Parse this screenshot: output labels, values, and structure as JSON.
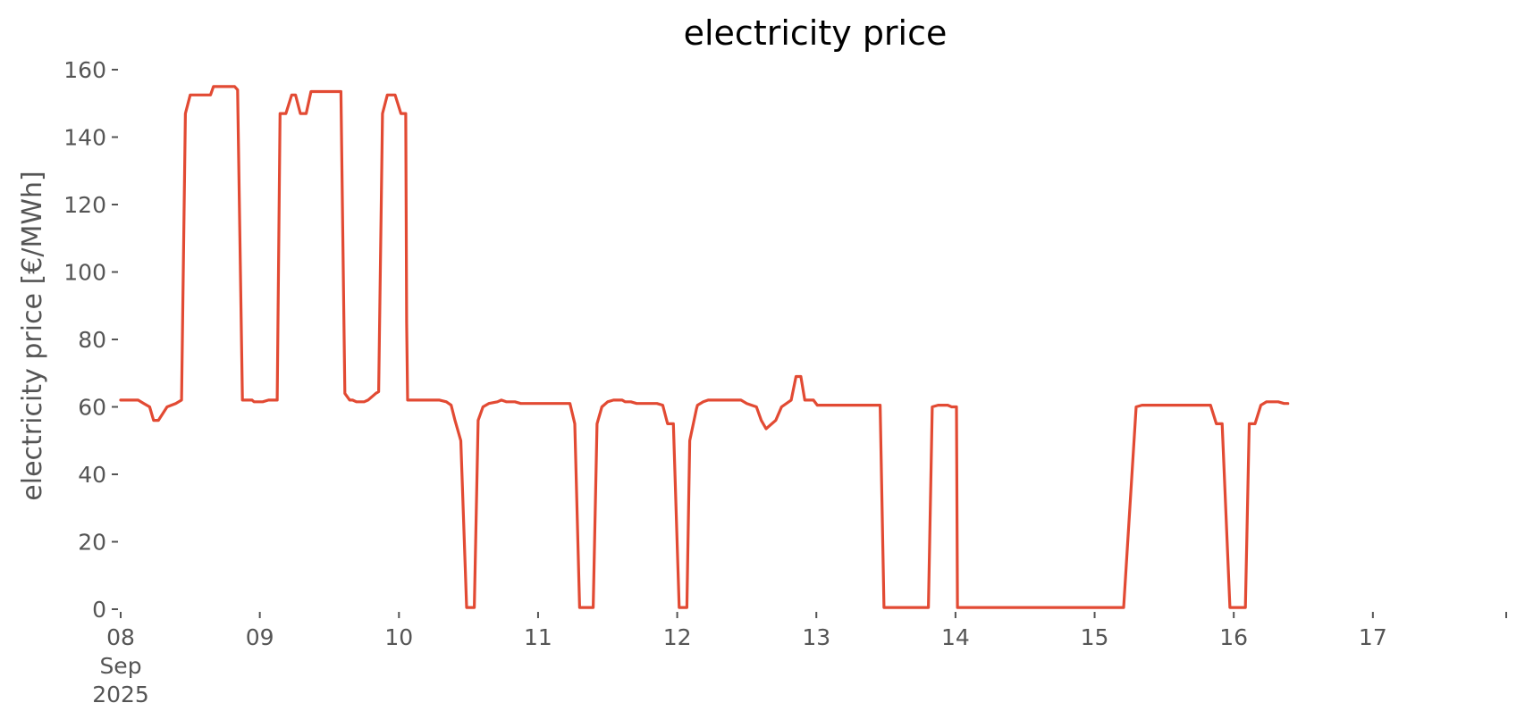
{
  "chart_data": {
    "type": "line",
    "title": "electricity price",
    "xlabel": "",
    "ylabel": "electricity price [€/MWh]",
    "xlim": [
      "2025-09-08T00:00",
      "2025-09-17T23:00"
    ],
    "ylim": [
      0,
      160
    ],
    "grid": false,
    "line_color": "#E24A33",
    "x_ticks": [
      {
        "x": "2025-09-08T00:00",
        "lines": [
          "08",
          "Sep",
          "2025"
        ]
      },
      {
        "x": "2025-09-09T00:00",
        "lines": [
          "09"
        ]
      },
      {
        "x": "2025-09-10T00:00",
        "lines": [
          "10"
        ]
      },
      {
        "x": "2025-09-11T00:00",
        "lines": [
          "11"
        ]
      },
      {
        "x": "2025-09-12T00:00",
        "lines": [
          "12"
        ]
      },
      {
        "x": "2025-09-13T00:00",
        "lines": [
          "13"
        ]
      },
      {
        "x": "2025-09-14T00:00",
        "lines": [
          "14"
        ]
      },
      {
        "x": "2025-09-15T00:00",
        "lines": [
          "15"
        ]
      },
      {
        "x": "2025-09-16T00:00",
        "lines": [
          "16"
        ]
      },
      {
        "x": "2025-09-17T00:00",
        "lines": [
          "17"
        ]
      },
      {
        "x": "2025-09-17T23:00",
        "lines": [
          ""
        ]
      }
    ],
    "y_ticks": [
      0,
      20,
      40,
      60,
      80,
      100,
      120,
      140,
      160
    ],
    "series": [
      {
        "points": [
          [
            "2025-09-08T00:00",
            62.0
          ],
          [
            "2025-09-08T03:00",
            62.0
          ],
          [
            "2025-09-08T04:00",
            61.0
          ],
          [
            "2025-09-08T05:00",
            60.0
          ],
          [
            "2025-09-08T05:40",
            56.0
          ],
          [
            "2025-09-08T06:30",
            56.0
          ],
          [
            "2025-09-08T08:00",
            60.0
          ],
          [
            "2025-09-08T09:30",
            61.0
          ],
          [
            "2025-09-08T10:30",
            62.0
          ],
          [
            "2025-09-08T11:10",
            147.0
          ],
          [
            "2025-09-08T12:00",
            152.5
          ],
          [
            "2025-09-08T15:30",
            152.5
          ],
          [
            "2025-09-08T16:00",
            155.0
          ],
          [
            "2025-09-08T19:40",
            155.0
          ],
          [
            "2025-09-08T20:10",
            154.0
          ],
          [
            "2025-09-08T21:00",
            62.0
          ],
          [
            "2025-09-08T22:40",
            62.0
          ],
          [
            "2025-09-08T23:00",
            61.5
          ],
          [
            "2025-09-09T00:30",
            61.5
          ],
          [
            "2025-09-09T01:30",
            62.0
          ],
          [
            "2025-09-09T03:00",
            62.0
          ],
          [
            "2025-09-09T03:30",
            147.0
          ],
          [
            "2025-09-09T04:30",
            147.0
          ],
          [
            "2025-09-09T05:30",
            152.5
          ],
          [
            "2025-09-09T06:10",
            152.5
          ],
          [
            "2025-09-09T07:00",
            147.0
          ],
          [
            "2025-09-09T08:00",
            147.0
          ],
          [
            "2025-09-09T08:50",
            153.5
          ],
          [
            "2025-09-09T14:00",
            153.5
          ],
          [
            "2025-09-09T14:40",
            64.0
          ],
          [
            "2025-09-09T15:30",
            62.0
          ],
          [
            "2025-09-09T16:00",
            62.0
          ],
          [
            "2025-09-09T16:40",
            61.5
          ],
          [
            "2025-09-09T18:00",
            61.5
          ],
          [
            "2025-09-09T18:40",
            62.0
          ],
          [
            "2025-09-09T20:00",
            64.0
          ],
          [
            "2025-09-09T20:30",
            64.5
          ],
          [
            "2025-09-09T21:10",
            147.0
          ],
          [
            "2025-09-09T22:00",
            152.5
          ],
          [
            "2025-09-09T23:20",
            152.5
          ],
          [
            "2025-09-10T00:20",
            147.0
          ],
          [
            "2025-09-10T01:10",
            147.0
          ],
          [
            "2025-09-10T01:20",
            85.0
          ],
          [
            "2025-09-10T01:30",
            62.0
          ],
          [
            "2025-09-10T07:00",
            62.0
          ],
          [
            "2025-09-10T08:10",
            61.5
          ],
          [
            "2025-09-10T09:00",
            60.5
          ],
          [
            "2025-09-10T09:40",
            56.0
          ],
          [
            "2025-09-10T10:40",
            50.0
          ],
          [
            "2025-09-10T11:40",
            0.5
          ],
          [
            "2025-09-10T13:00",
            0.5
          ],
          [
            "2025-09-10T13:40",
            56.0
          ],
          [
            "2025-09-10T14:30",
            60.0
          ],
          [
            "2025-09-10T15:30",
            61.0
          ],
          [
            "2025-09-10T17:00",
            61.5
          ],
          [
            "2025-09-10T17:40",
            62.0
          ],
          [
            "2025-09-10T18:30",
            61.5
          ],
          [
            "2025-09-10T20:00",
            61.5
          ],
          [
            "2025-09-10T21:00",
            61.0
          ],
          [
            "2025-09-11T05:30",
            61.0
          ],
          [
            "2025-09-11T06:20",
            55.0
          ],
          [
            "2025-09-11T07:10",
            0.5
          ],
          [
            "2025-09-11T09:30",
            0.5
          ],
          [
            "2025-09-11T10:10",
            55.0
          ],
          [
            "2025-09-11T11:00",
            60.0
          ],
          [
            "2025-09-11T12:00",
            61.5
          ],
          [
            "2025-09-11T13:00",
            62.0
          ],
          [
            "2025-09-11T14:30",
            62.0
          ],
          [
            "2025-09-11T15:00",
            61.5
          ],
          [
            "2025-09-11T16:00",
            61.5
          ],
          [
            "2025-09-11T17:00",
            61.0
          ],
          [
            "2025-09-11T20:30",
            61.0
          ],
          [
            "2025-09-11T21:30",
            60.5
          ],
          [
            "2025-09-11T22:20",
            55.0
          ],
          [
            "2025-09-11T23:20",
            55.0
          ],
          [
            "2025-09-12T00:20",
            0.5
          ],
          [
            "2025-09-12T01:40",
            0.5
          ],
          [
            "2025-09-12T02:10",
            50.0
          ],
          [
            "2025-09-12T03:20",
            59.5
          ],
          [
            "2025-09-12T03:30",
            60.5
          ],
          [
            "2025-09-12T04:30",
            61.5
          ],
          [
            "2025-09-12T05:20",
            62.0
          ],
          [
            "2025-09-12T11:00",
            62.0
          ],
          [
            "2025-09-12T12:00",
            61.0
          ],
          [
            "2025-09-12T13:40",
            60.0
          ],
          [
            "2025-09-12T14:30",
            56.0
          ],
          [
            "2025-09-12T15:20",
            53.5
          ],
          [
            "2025-09-12T17:00",
            56.0
          ],
          [
            "2025-09-12T18:00",
            60.0
          ],
          [
            "2025-09-12T19:40",
            62.0
          ],
          [
            "2025-09-12T20:30",
            69.0
          ],
          [
            "2025-09-12T21:20",
            69.0
          ],
          [
            "2025-09-12T22:00",
            62.0
          ],
          [
            "2025-09-12T23:30",
            62.0
          ],
          [
            "2025-09-13T00:10",
            60.5
          ],
          [
            "2025-09-13T11:00",
            60.5
          ],
          [
            "2025-09-13T11:40",
            0.5
          ],
          [
            "2025-09-13T19:20",
            0.5
          ],
          [
            "2025-09-13T20:00",
            60.0
          ],
          [
            "2025-09-13T21:00",
            60.5
          ],
          [
            "2025-09-13T22:40",
            60.5
          ],
          [
            "2025-09-13T23:20",
            60.0
          ],
          [
            "2025-09-14T00:10",
            60.0
          ],
          [
            "2025-09-14T00:20",
            0.5
          ],
          [
            "2025-09-15T03:00",
            0.5
          ],
          [
            "2025-09-15T05:00",
            0.5
          ],
          [
            "2025-09-15T07:10",
            60.0
          ],
          [
            "2025-09-15T08:10",
            60.5
          ],
          [
            "2025-09-15T20:00",
            60.5
          ],
          [
            "2025-09-15T21:00",
            55.0
          ],
          [
            "2025-09-15T22:00",
            55.0
          ],
          [
            "2025-09-15T23:20",
            0.5
          ],
          [
            "2025-09-16T02:00",
            0.5
          ],
          [
            "2025-09-16T02:40",
            55.0
          ],
          [
            "2025-09-16T03:40",
            55.0
          ],
          [
            "2025-09-16T04:40",
            60.5
          ],
          [
            "2025-09-16T05:40",
            61.5
          ],
          [
            "2025-09-16T07:40",
            61.5
          ],
          [
            "2025-09-16T08:40",
            61.0
          ],
          [
            "2025-09-16T09:20",
            61.0
          ]
        ]
      }
    ]
  }
}
